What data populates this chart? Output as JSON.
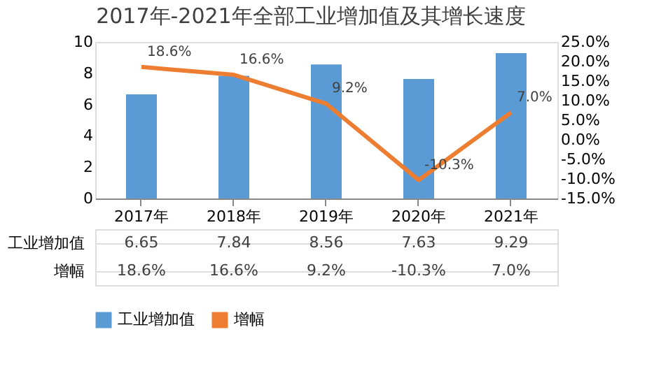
{
  "chart_data": {
    "type": "bar",
    "title": "2017年-2021年全部工业增加值及其增长速度",
    "categories": [
      "2017年",
      "2018年",
      "2019年",
      "2020年",
      "2021年"
    ],
    "series": [
      {
        "name": "工业增加值",
        "color": "#5b9bd5",
        "values": [
          6.65,
          7.84,
          8.56,
          7.63,
          9.29
        ],
        "value_labels": [
          "6.65",
          "7.84",
          "8.56",
          "7.63",
          "9.29"
        ]
      },
      {
        "name": "增幅",
        "type": "line",
        "axis": "y2",
        "color": "#ed7d31",
        "values": [
          18.6,
          16.6,
          9.2,
          -10.3,
          7.0
        ],
        "value_labels": [
          "18.6%",
          "16.6%",
          "9.2%",
          "-10.3%",
          "7.0%"
        ]
      }
    ],
    "ylim": [
      0,
      10
    ],
    "yticks": [
      0,
      2,
      4,
      6,
      8,
      10
    ],
    "y2lim": [
      -15,
      25
    ],
    "y2ticks": [
      {
        "value": -15,
        "label": "-15.0%"
      },
      {
        "value": -10,
        "label": "-10.0%"
      },
      {
        "value": -5,
        "label": "-5.0%"
      },
      {
        "value": 0,
        "label": "0.0%"
      },
      {
        "value": 5,
        "label": "5.0%"
      },
      {
        "value": 10,
        "label": "10.0%"
      },
      {
        "value": 15,
        "label": "15.0%"
      },
      {
        "value": 20,
        "label": "20.0%"
      },
      {
        "value": 25,
        "label": "25.0%"
      }
    ],
    "grid": false,
    "legend": "bottom",
    "marker": "none",
    "line_style": "solid"
  }
}
